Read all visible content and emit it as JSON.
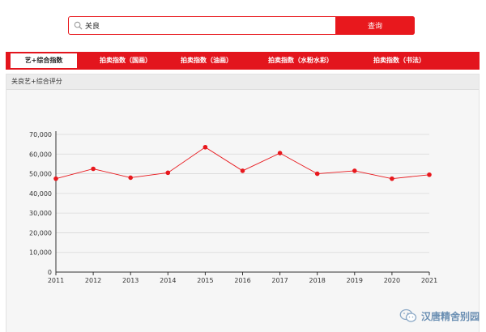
{
  "search": {
    "value": "关良",
    "button_label": "查询"
  },
  "tabs": [
    {
      "label": "艺+综合指数",
      "active": true
    },
    {
      "label": "拍卖指数（国画）",
      "active": false
    },
    {
      "label": "拍卖指数（油画）",
      "active": false
    },
    {
      "label": "拍卖指数（水粉水彩）",
      "active": false
    },
    {
      "label": "拍卖指数（书法）",
      "active": false
    }
  ],
  "panel": {
    "title": "关良艺+综合评分"
  },
  "colors": {
    "accent": "#e3151d",
    "line": "#e8181d",
    "grid": "#d9d9d9"
  },
  "chart_data": {
    "type": "line",
    "title": "",
    "xlabel": "",
    "ylabel": "",
    "categories": [
      "2011",
      "2012",
      "2013",
      "2014",
      "2015",
      "2016",
      "2017",
      "2018",
      "2019",
      "2020",
      "2021"
    ],
    "values": [
      47500,
      52500,
      48000,
      50500,
      63500,
      51500,
      60500,
      50000,
      51500,
      47500,
      49500
    ],
    "ylim": [
      0,
      70000
    ],
    "yticks": [
      0,
      10000,
      20000,
      30000,
      40000,
      50000,
      60000,
      70000
    ],
    "ytick_labels": [
      "0",
      "10,000",
      "20,000",
      "30,000",
      "40,000",
      "50,000",
      "60,000",
      "70,000"
    ],
    "grid": true,
    "legend": "none"
  },
  "watermark": {
    "text": "汉唐精舍别园",
    "icon": "wechat-icon"
  }
}
